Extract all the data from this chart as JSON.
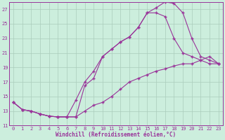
{
  "bg_color": "#cceedd",
  "grid_color": "#aaccbb",
  "line_color": "#993399",
  "xlabel": "Windchill (Refroidissement éolien,°C)",
  "xlim": [
    -0.5,
    23.5
  ],
  "ylim": [
    11,
    28
  ],
  "xticks": [
    0,
    1,
    2,
    3,
    4,
    5,
    6,
    7,
    8,
    9,
    10,
    11,
    12,
    13,
    14,
    15,
    16,
    17,
    18,
    19,
    20,
    21,
    22,
    23
  ],
  "yticks": [
    11,
    13,
    15,
    17,
    19,
    21,
    23,
    25,
    27
  ],
  "curve1_x": [
    0,
    1,
    2,
    3,
    4,
    5,
    6,
    7,
    8,
    9,
    10,
    11,
    12,
    13,
    14,
    15,
    16,
    17,
    18,
    19,
    20,
    21,
    22,
    23
  ],
  "curve1_y": [
    14.2,
    13.2,
    13.0,
    12.6,
    12.3,
    12.2,
    12.2,
    12.2,
    16.5,
    17.5,
    20.5,
    21.5,
    22.5,
    23.2,
    24.5,
    26.5,
    27.2,
    28.0,
    27.8,
    26.5,
    23.0,
    20.5,
    20.0,
    19.5
  ],
  "curve2_x": [
    0,
    1,
    2,
    3,
    4,
    5,
    6,
    7,
    8,
    9,
    10,
    11,
    12,
    13,
    14,
    15,
    16,
    17,
    18,
    19,
    20,
    21,
    22,
    23
  ],
  "curve2_y": [
    14.2,
    13.2,
    13.0,
    12.6,
    12.3,
    12.2,
    12.2,
    14.5,
    17.0,
    18.5,
    20.5,
    21.5,
    22.5,
    23.2,
    24.5,
    26.5,
    26.5,
    26.0,
    23.0,
    21.0,
    20.5,
    20.0,
    19.5,
    19.5
  ],
  "curve3_x": [
    0,
    1,
    2,
    3,
    4,
    5,
    6,
    7,
    8,
    9,
    10,
    11,
    12,
    13,
    14,
    15,
    16,
    17,
    18,
    19,
    20,
    21,
    22,
    23
  ],
  "curve3_y": [
    14.2,
    13.2,
    13.0,
    12.6,
    12.3,
    12.2,
    12.2,
    12.2,
    13.0,
    13.8,
    14.2,
    15.0,
    16.0,
    17.0,
    17.5,
    18.0,
    18.5,
    18.8,
    19.2,
    19.5,
    19.5,
    20.0,
    20.5,
    19.5
  ]
}
